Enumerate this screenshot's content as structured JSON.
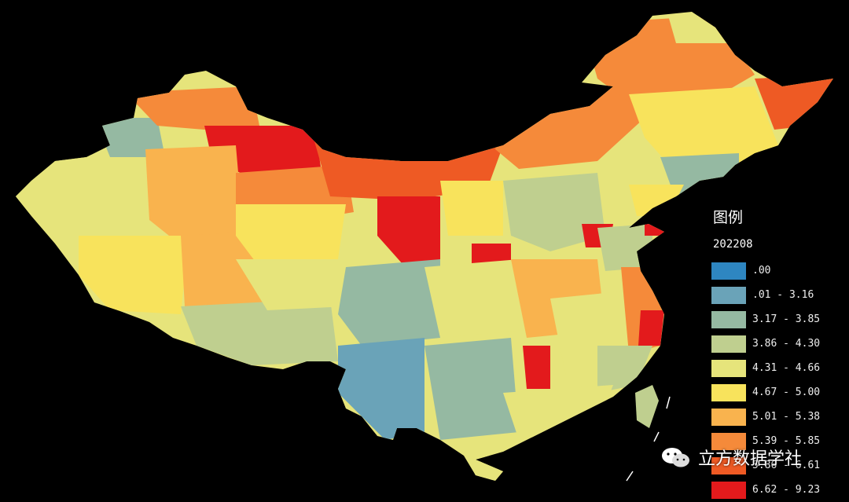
{
  "legend": {
    "title": "图例",
    "subtitle": "202208",
    "classes": [
      {
        "label": ".00",
        "color": "#2e86c1"
      },
      {
        "label": ".01 - 3.16",
        "color": "#6aa3b8"
      },
      {
        "label": "3.17 - 3.85",
        "color": "#95b9a2"
      },
      {
        "label": "3.86 - 4.30",
        "color": "#bfcf8f"
      },
      {
        "label": "4.31 - 4.66",
        "color": "#e6e47b"
      },
      {
        "label": "4.67 - 5.00",
        "color": "#f8e35c"
      },
      {
        "label": "5.01 - 5.38",
        "color": "#f9b34e"
      },
      {
        "label": "5.39 - 5.85",
        "color": "#f58a3a"
      },
      {
        "label": "5.86 - 6.61",
        "color": "#ee5a24"
      },
      {
        "label": "6.62 - 9.23",
        "color": "#e31a1c"
      }
    ]
  },
  "watermark": {
    "text": "立方数据学社",
    "icon": "wechat-icon"
  },
  "colors": {
    "background": "#000000",
    "no_data": "#000000"
  }
}
